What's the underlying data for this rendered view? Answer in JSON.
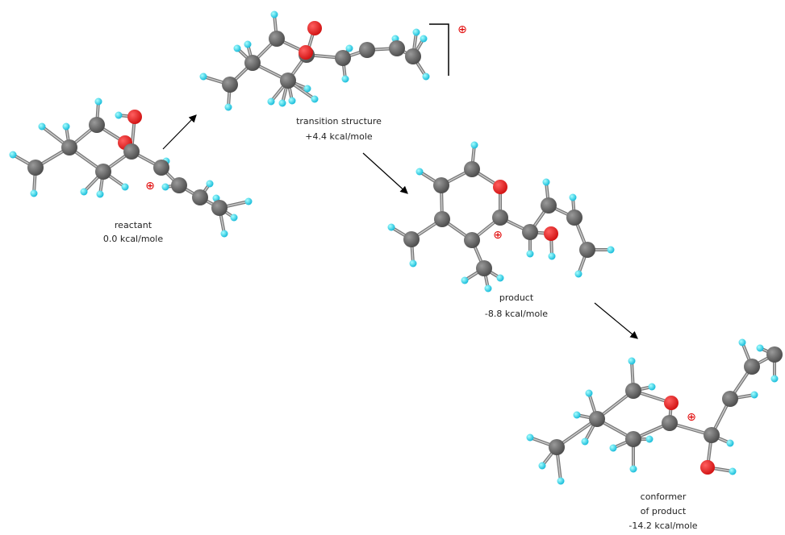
{
  "stages": [
    {
      "label": "reactant",
      "energy": "0.0 kcal/mole"
    },
    {
      "label": "transition structure",
      "energy": "+4.4 kcal/mole"
    },
    {
      "label": "product",
      "energy": "-8.8 kcal/mole"
    },
    {
      "label": "conformer",
      "label2": "of product",
      "energy": "-14.2 kcal/mole"
    }
  ],
  "charge_symbol": "⊕"
}
